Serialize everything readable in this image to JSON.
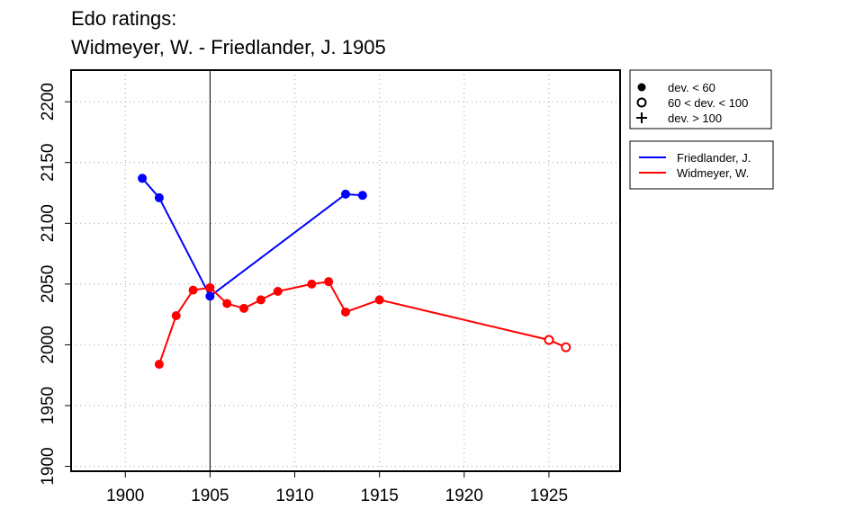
{
  "title_line1": "Edo ratings:",
  "title_line2": "Widmeyer, W. - Friedlander, J. 1905",
  "chart_data": {
    "type": "line",
    "xlim": [
      1896.8,
      1929.2
    ],
    "ylim": [
      1896,
      2226
    ],
    "x_ticks": [
      1900,
      1905,
      1910,
      1915,
      1920,
      1925
    ],
    "y_ticks": [
      1900,
      1950,
      2000,
      2050,
      2100,
      2150,
      2200
    ],
    "grid": true,
    "vertical_marker": 1905,
    "xlabel": "",
    "ylabel": "",
    "legend_symbols": [
      {
        "marker": "filled",
        "label": "dev. < 60"
      },
      {
        "marker": "open",
        "label": "60 < dev. < 100"
      },
      {
        "marker": "plus",
        "label": "dev. > 100"
      }
    ],
    "legend_placement": "right",
    "series": [
      {
        "name": "Friedlander, J.",
        "color": "#0000ff",
        "points": [
          {
            "x": 1901,
            "y": 2137,
            "marker": "filled"
          },
          {
            "x": 1902,
            "y": 2121,
            "marker": "filled"
          },
          {
            "x": 1905,
            "y": 2040,
            "marker": "filled"
          },
          {
            "x": 1913,
            "y": 2124,
            "marker": "filled"
          },
          {
            "x": 1914,
            "y": 2123,
            "marker": "filled"
          }
        ]
      },
      {
        "name": "Widmeyer, W.",
        "color": "#ff0000",
        "points": [
          {
            "x": 1902,
            "y": 1984,
            "marker": "filled"
          },
          {
            "x": 1903,
            "y": 2024,
            "marker": "filled"
          },
          {
            "x": 1904,
            "y": 2045,
            "marker": "filled"
          },
          {
            "x": 1905,
            "y": 2047,
            "marker": "filled"
          },
          {
            "x": 1906,
            "y": 2034,
            "marker": "filled"
          },
          {
            "x": 1907,
            "y": 2030,
            "marker": "filled"
          },
          {
            "x": 1908,
            "y": 2037,
            "marker": "filled"
          },
          {
            "x": 1909,
            "y": 2044,
            "marker": "filled"
          },
          {
            "x": 1911,
            "y": 2050,
            "marker": "filled"
          },
          {
            "x": 1912,
            "y": 2052,
            "marker": "filled"
          },
          {
            "x": 1913,
            "y": 2027,
            "marker": "filled"
          },
          {
            "x": 1915,
            "y": 2037,
            "marker": "filled"
          },
          {
            "x": 1925,
            "y": 2004,
            "marker": "open"
          },
          {
            "x": 1926,
            "y": 1998,
            "marker": "open"
          }
        ]
      }
    ]
  }
}
